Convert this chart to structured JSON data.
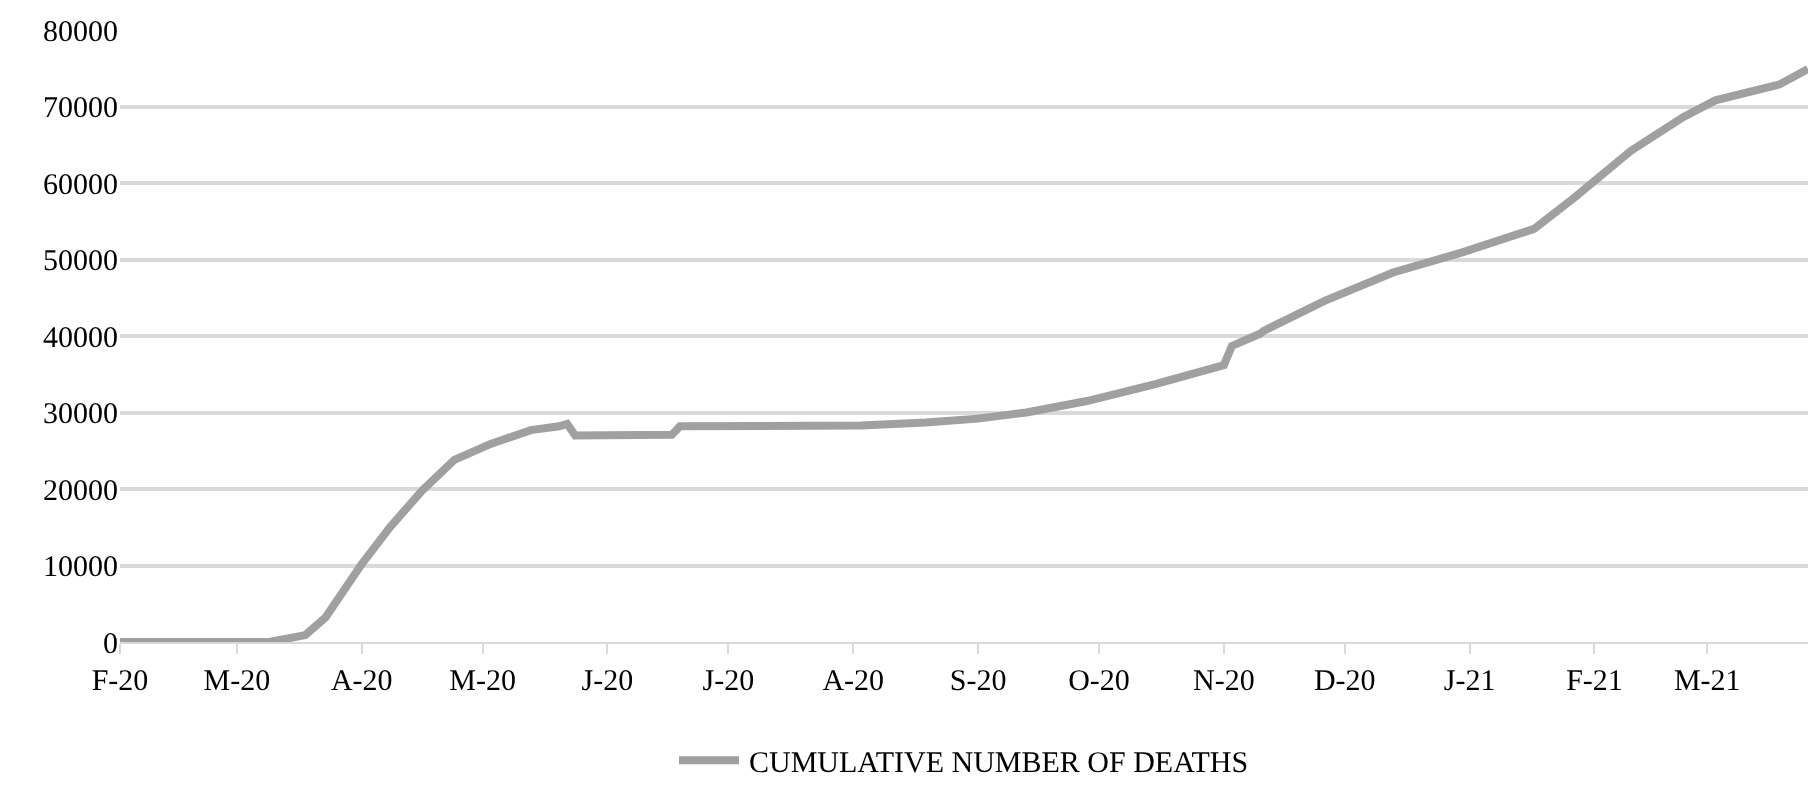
{
  "chart_data": {
    "type": "line",
    "x": [
      "2020-02-01",
      "2020-03-09",
      "2020-03-18",
      "2020-03-23",
      "2020-04-01",
      "2020-04-08",
      "2020-04-16",
      "2020-04-24",
      "2020-05-03",
      "2020-05-13",
      "2020-05-20",
      "2020-05-22",
      "2020-05-24",
      "2020-06-17",
      "2020-06-19",
      "2020-08-03",
      "2020-08-19",
      "2020-09-01",
      "2020-09-13",
      "2020-09-28",
      "2020-10-15",
      "2020-11-01",
      "2020-11-03",
      "2020-11-10",
      "2020-11-11",
      "2020-11-26",
      "2020-12-13",
      "2020-12-30",
      "2021-01-17",
      "2021-01-27",
      "2021-02-10",
      "2021-02-23",
      "2021-03-03",
      "2021-03-19",
      "2021-03-26"
    ],
    "series": [
      {
        "name": "CUMULATIVE NUMBER OF DEATHS",
        "color": "#a0a0a0",
        "values": [
          0,
          0,
          900,
          3200,
          10200,
          15000,
          19800,
          23800,
          25900,
          27700,
          28200,
          28500,
          27000,
          27100,
          28200,
          28300,
          28700,
          29200,
          30000,
          31500,
          33700,
          36200,
          38700,
          40300,
          40700,
          44600,
          48300,
          50900,
          54000,
          58100,
          64200,
          68600,
          70800,
          72900,
          74900
        ]
      }
    ],
    "xlim": [
      "2020-02-01",
      "2021-03-26"
    ],
    "xticks": [
      {
        "value": "2020-02-01",
        "label": "F-20"
      },
      {
        "value": "2020-03-01",
        "label": "M-20"
      },
      {
        "value": "2020-04-01",
        "label": "A-20"
      },
      {
        "value": "2020-05-01",
        "label": "M-20"
      },
      {
        "value": "2020-06-01",
        "label": "J-20"
      },
      {
        "value": "2020-07-01",
        "label": "J-20"
      },
      {
        "value": "2020-08-01",
        "label": "A-20"
      },
      {
        "value": "2020-09-01",
        "label": "S-20"
      },
      {
        "value": "2020-10-01",
        "label": "O-20"
      },
      {
        "value": "2020-11-01",
        "label": "N-20"
      },
      {
        "value": "2020-12-01",
        "label": "D-20"
      },
      {
        "value": "2021-01-01",
        "label": "J-21"
      },
      {
        "value": "2021-02-01",
        "label": "F-21"
      },
      {
        "value": "2021-03-01",
        "label": "M-21"
      }
    ],
    "ylim": [
      0,
      80000
    ],
    "yticks": [
      0,
      10000,
      20000,
      30000,
      40000,
      50000,
      60000,
      70000,
      80000
    ],
    "grid": "y",
    "legend": "bottom",
    "marker": "none",
    "line_style": "solid"
  }
}
